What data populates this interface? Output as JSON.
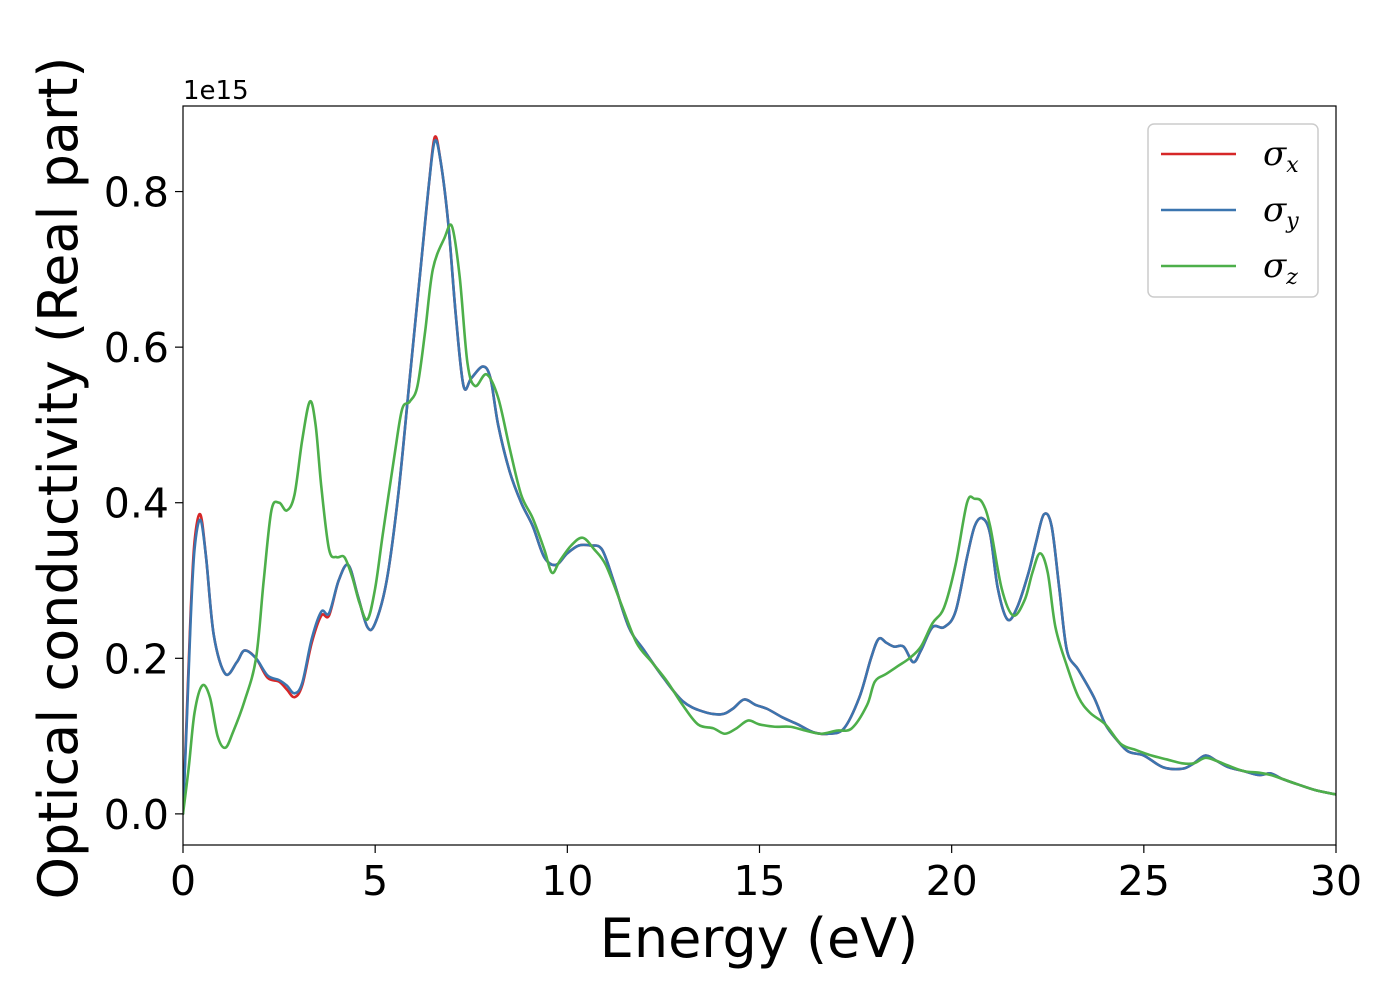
{
  "chart_data": {
    "type": "line",
    "title": "",
    "xlabel": "Energy (eV)",
    "ylabel": "Optical conductivity (Real part)",
    "y_offset_label": "1e15",
    "xlim": [
      0,
      30
    ],
    "ylim": [
      -0.04,
      0.91
    ],
    "xticks": [
      0,
      5,
      10,
      15,
      20,
      25,
      30
    ],
    "xtick_labels": [
      "0",
      "5",
      "10",
      "15",
      "20",
      "25",
      "30"
    ],
    "yticks": [
      0.0,
      0.2,
      0.4,
      0.6,
      0.8
    ],
    "ytick_labels": [
      "0.0",
      "0.2",
      "0.4",
      "0.6",
      "0.8"
    ],
    "grid": false,
    "legend_position": "top-right",
    "series": [
      {
        "name": "σx",
        "symbol": "σ",
        "subscript": "x",
        "color": "#d62728",
        "x": [
          0,
          0.1,
          0.2,
          0.3,
          0.45,
          0.6,
          0.8,
          1.1,
          1.4,
          1.6,
          1.9,
          2.2,
          2.5,
          2.7,
          2.9,
          3.1,
          3.35,
          3.6,
          3.8,
          4.05,
          4.3,
          4.55,
          4.8,
          5.0,
          5.3,
          5.6,
          5.9,
          6.2,
          6.4,
          6.55,
          6.7,
          6.9,
          7.1,
          7.3,
          7.5,
          7.8,
          8.0,
          8.2,
          8.5,
          8.8,
          9.1,
          9.4,
          9.7,
          10.0,
          10.3,
          10.6,
          10.9,
          11.2,
          11.6,
          12.0,
          12.5,
          13.0,
          13.5,
          14.0,
          14.3,
          14.6,
          14.9,
          15.2,
          15.6,
          16.0,
          16.4,
          16.8,
          17.2,
          17.6,
          17.9,
          18.1,
          18.3,
          18.5,
          18.75,
          19.0,
          19.2,
          19.5,
          19.8,
          20.1,
          20.4,
          20.6,
          20.8,
          21.0,
          21.2,
          21.45,
          21.7,
          22.0,
          22.2,
          22.4,
          22.6,
          22.8,
          23.0,
          23.3,
          23.7,
          24.0,
          24.3,
          24.6,
          25.0,
          25.5,
          26.0,
          26.3,
          26.6,
          26.9,
          27.2,
          27.6,
          28.0,
          28.3,
          28.6,
          29.0,
          29.5,
          30.0
        ],
        "values": [
          0.0,
          0.13,
          0.26,
          0.35,
          0.385,
          0.33,
          0.23,
          0.18,
          0.195,
          0.21,
          0.2,
          0.175,
          0.17,
          0.16,
          0.15,
          0.165,
          0.22,
          0.255,
          0.255,
          0.3,
          0.32,
          0.28,
          0.24,
          0.245,
          0.3,
          0.41,
          0.56,
          0.71,
          0.81,
          0.87,
          0.84,
          0.76,
          0.64,
          0.55,
          0.56,
          0.575,
          0.56,
          0.5,
          0.44,
          0.4,
          0.37,
          0.33,
          0.32,
          0.335,
          0.345,
          0.345,
          0.34,
          0.3,
          0.24,
          0.21,
          0.175,
          0.145,
          0.132,
          0.128,
          0.135,
          0.147,
          0.14,
          0.135,
          0.124,
          0.115,
          0.105,
          0.103,
          0.11,
          0.15,
          0.2,
          0.225,
          0.22,
          0.215,
          0.215,
          0.195,
          0.21,
          0.24,
          0.24,
          0.26,
          0.33,
          0.37,
          0.38,
          0.36,
          0.29,
          0.25,
          0.265,
          0.31,
          0.35,
          0.385,
          0.37,
          0.29,
          0.21,
          0.185,
          0.15,
          0.115,
          0.095,
          0.08,
          0.075,
          0.06,
          0.058,
          0.065,
          0.075,
          0.068,
          0.06,
          0.055,
          0.05,
          0.052,
          0.045,
          0.038,
          0.03,
          0.025
        ]
      },
      {
        "name": "σy",
        "symbol": "σ",
        "subscript": "y",
        "color": "#3b75af",
        "x": [
          0,
          0.1,
          0.2,
          0.3,
          0.45,
          0.6,
          0.8,
          1.1,
          1.4,
          1.6,
          1.9,
          2.2,
          2.5,
          2.7,
          2.9,
          3.1,
          3.35,
          3.6,
          3.8,
          4.05,
          4.3,
          4.55,
          4.8,
          5.0,
          5.3,
          5.6,
          5.9,
          6.2,
          6.4,
          6.55,
          6.7,
          6.9,
          7.1,
          7.3,
          7.5,
          7.8,
          8.0,
          8.2,
          8.5,
          8.8,
          9.1,
          9.4,
          9.7,
          10.0,
          10.3,
          10.6,
          10.9,
          11.2,
          11.6,
          12.0,
          12.5,
          13.0,
          13.5,
          14.0,
          14.3,
          14.6,
          14.9,
          15.2,
          15.6,
          16.0,
          16.4,
          16.8,
          17.2,
          17.6,
          17.9,
          18.1,
          18.3,
          18.5,
          18.75,
          19.0,
          19.2,
          19.5,
          19.8,
          20.1,
          20.4,
          20.6,
          20.8,
          21.0,
          21.2,
          21.45,
          21.7,
          22.0,
          22.2,
          22.4,
          22.6,
          22.8,
          23.0,
          23.3,
          23.7,
          24.0,
          24.3,
          24.6,
          25.0,
          25.5,
          26.0,
          26.3,
          26.6,
          26.9,
          27.2,
          27.6,
          28.0,
          28.3,
          28.6,
          29.0,
          29.5,
          30.0
        ],
        "values": [
          0.0,
          0.12,
          0.25,
          0.34,
          0.378,
          0.33,
          0.23,
          0.18,
          0.195,
          0.21,
          0.2,
          0.178,
          0.172,
          0.165,
          0.155,
          0.168,
          0.225,
          0.26,
          0.258,
          0.3,
          0.32,
          0.28,
          0.24,
          0.245,
          0.3,
          0.41,
          0.56,
          0.71,
          0.81,
          0.865,
          0.84,
          0.76,
          0.64,
          0.55,
          0.56,
          0.575,
          0.56,
          0.5,
          0.44,
          0.4,
          0.37,
          0.33,
          0.32,
          0.335,
          0.345,
          0.345,
          0.34,
          0.3,
          0.24,
          0.21,
          0.175,
          0.145,
          0.132,
          0.128,
          0.135,
          0.147,
          0.14,
          0.135,
          0.124,
          0.115,
          0.105,
          0.103,
          0.11,
          0.15,
          0.2,
          0.225,
          0.22,
          0.215,
          0.215,
          0.195,
          0.21,
          0.24,
          0.24,
          0.26,
          0.33,
          0.37,
          0.38,
          0.36,
          0.29,
          0.25,
          0.265,
          0.31,
          0.35,
          0.385,
          0.37,
          0.29,
          0.21,
          0.185,
          0.15,
          0.115,
          0.095,
          0.08,
          0.075,
          0.06,
          0.058,
          0.065,
          0.075,
          0.068,
          0.06,
          0.055,
          0.05,
          0.052,
          0.045,
          0.038,
          0.03,
          0.025
        ]
      },
      {
        "name": "σz",
        "symbol": "σ",
        "subscript": "z",
        "color": "#4daf4a",
        "x": [
          0,
          0.15,
          0.3,
          0.5,
          0.7,
          0.9,
          1.1,
          1.3,
          1.6,
          1.9,
          2.1,
          2.3,
          2.5,
          2.7,
          2.9,
          3.1,
          3.3,
          3.45,
          3.6,
          3.8,
          4.0,
          4.2,
          4.4,
          4.6,
          4.8,
          5.0,
          5.2,
          5.5,
          5.7,
          5.9,
          6.1,
          6.3,
          6.5,
          6.8,
          7.0,
          7.2,
          7.4,
          7.6,
          7.9,
          8.2,
          8.5,
          8.8,
          9.1,
          9.4,
          9.6,
          9.8,
          10.1,
          10.4,
          10.7,
          11.0,
          11.4,
          11.8,
          12.2,
          12.6,
          13.0,
          13.4,
          13.8,
          14.1,
          14.4,
          14.7,
          15.0,
          15.4,
          15.8,
          16.2,
          16.6,
          17.0,
          17.4,
          17.8,
          18.0,
          18.3,
          18.6,
          18.9,
          19.2,
          19.5,
          19.8,
          20.1,
          20.4,
          20.6,
          20.8,
          21.0,
          21.3,
          21.6,
          21.9,
          22.1,
          22.3,
          22.5,
          22.7,
          23.0,
          23.3,
          23.6,
          24.0,
          24.4,
          24.8,
          25.2,
          25.6,
          26.0,
          26.3,
          26.6,
          26.9,
          27.2,
          27.6,
          28.0,
          28.3,
          28.6,
          29.0,
          29.5,
          30.0
        ],
        "values": [
          0.0,
          0.06,
          0.13,
          0.165,
          0.15,
          0.1,
          0.085,
          0.105,
          0.145,
          0.2,
          0.3,
          0.39,
          0.4,
          0.39,
          0.41,
          0.48,
          0.53,
          0.5,
          0.42,
          0.34,
          0.33,
          0.33,
          0.305,
          0.27,
          0.25,
          0.29,
          0.36,
          0.46,
          0.52,
          0.53,
          0.55,
          0.62,
          0.7,
          0.74,
          0.755,
          0.69,
          0.58,
          0.55,
          0.565,
          0.535,
          0.47,
          0.41,
          0.38,
          0.34,
          0.31,
          0.325,
          0.345,
          0.355,
          0.34,
          0.32,
          0.27,
          0.22,
          0.195,
          0.17,
          0.14,
          0.115,
          0.11,
          0.103,
          0.11,
          0.12,
          0.115,
          0.112,
          0.112,
          0.107,
          0.103,
          0.107,
          0.11,
          0.14,
          0.17,
          0.18,
          0.19,
          0.2,
          0.215,
          0.245,
          0.265,
          0.32,
          0.4,
          0.405,
          0.4,
          0.37,
          0.29,
          0.255,
          0.275,
          0.31,
          0.335,
          0.31,
          0.24,
          0.19,
          0.15,
          0.13,
          0.115,
          0.09,
          0.082,
          0.075,
          0.07,
          0.065,
          0.065,
          0.072,
          0.068,
          0.062,
          0.055,
          0.053,
          0.05,
          0.045,
          0.038,
          0.03,
          0.025
        ]
      }
    ]
  }
}
